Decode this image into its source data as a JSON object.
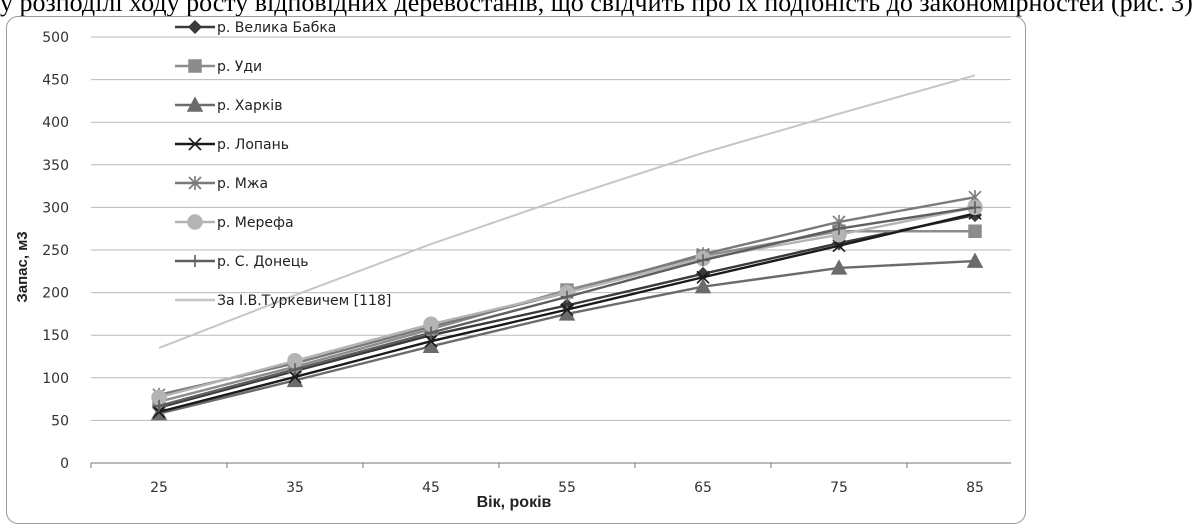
{
  "page": {
    "top_text": "у розподілі ходу росту відповідних деревостанів, що свідчить про їх подібність до закономірностей (рис. 3)"
  },
  "chart_data": {
    "type": "line",
    "title": "",
    "xlabel": "Вік, років",
    "ylabel": "Запас, м3",
    "x": [
      25,
      35,
      45,
      55,
      65,
      75,
      85
    ],
    "ylim": [
      0,
      500
    ],
    "yticks": [
      0,
      50,
      100,
      150,
      200,
      250,
      300,
      350,
      400,
      450,
      500
    ],
    "grid": "horizontal",
    "legend_position": "top-left",
    "series": [
      {
        "name": "р. Велика Бабка",
        "color": "#3a3a3a",
        "marker": "diamond",
        "values": [
          65,
          108,
          150,
          185,
          222,
          258,
          291
        ]
      },
      {
        "name": "р. Уди",
        "color": "#8c8c8c",
        "marker": "square",
        "values": [
          72,
          113,
          157,
          203,
          243,
          272,
          272
        ]
      },
      {
        "name": "р. Харків",
        "color": "#6b6b6b",
        "marker": "triangle",
        "values": [
          58,
          97,
          137,
          175,
          207,
          229,
          237
        ]
      },
      {
        "name": "р. Лопань",
        "color": "#1a1a1a",
        "marker": "x",
        "values": [
          60,
          101,
          143,
          180,
          218,
          255,
          293
        ]
      },
      {
        "name": "р. Мжа",
        "color": "#7a7a7a",
        "marker": "star",
        "values": [
          80,
          117,
          160,
          200,
          245,
          283,
          312
        ]
      },
      {
        "name": "р. Мерефа",
        "color": "#b4b4b4",
        "marker": "circle",
        "values": [
          77,
          120,
          163,
          200,
          240,
          268,
          300
        ]
      },
      {
        "name": "р. С. Донець",
        "color": "#5e5e5e",
        "marker": "plus",
        "values": [
          67,
          110,
          153,
          195,
          238,
          275,
          300
        ]
      },
      {
        "name": "За І.В.Туркевичем [118]",
        "color": "#c6c6c6",
        "marker": "none",
        "values": [
          135,
          197,
          257,
          312,
          364,
          410,
          455
        ]
      }
    ]
  }
}
